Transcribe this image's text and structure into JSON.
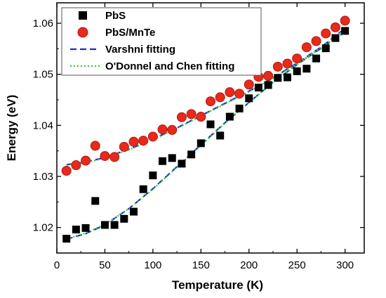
{
  "chart_data": {
    "type": "scatter",
    "xlabel": "Temperature (K)",
    "ylabel": "Energy (eV)",
    "xlim": [
      0,
      320
    ],
    "ylim": [
      1.015,
      1.064
    ],
    "xticks": [
      0,
      50,
      100,
      150,
      200,
      250,
      300
    ],
    "yticks": [
      1.02,
      1.03,
      1.04,
      1.05,
      1.06
    ],
    "legend_position": "top-left",
    "series": [
      {
        "name": "PbS",
        "kind": "marker-square",
        "color": "#000000",
        "x": [
          10,
          20,
          30,
          40,
          50,
          60,
          70,
          80,
          90,
          100,
          110,
          120,
          130,
          140,
          150,
          160,
          170,
          180,
          190,
          200,
          210,
          220,
          230,
          240,
          250,
          260,
          270,
          280,
          290,
          300
        ],
        "y": [
          1.0178,
          1.0196,
          1.0199,
          1.0252,
          1.0205,
          1.0205,
          1.0217,
          1.0231,
          1.0275,
          1.0302,
          1.033,
          1.0336,
          1.0325,
          1.0343,
          1.0365,
          1.0402,
          1.038,
          1.0417,
          1.0433,
          1.0453,
          1.0474,
          1.0479,
          1.0493,
          1.0494,
          1.0506,
          1.0511,
          1.0531,
          1.0551,
          1.0571,
          1.0585
        ]
      },
      {
        "name": "PbS/MnTe",
        "kind": "marker-circle",
        "color": "#e8291c",
        "x": [
          10,
          20,
          30,
          40,
          50,
          60,
          70,
          80,
          90,
          100,
          110,
          120,
          130,
          140,
          150,
          160,
          170,
          180,
          190,
          200,
          210,
          220,
          230,
          240,
          250,
          260,
          270,
          280,
          290,
          300
        ],
        "y": [
          1.0311,
          1.0322,
          1.0331,
          1.036,
          1.034,
          1.0338,
          1.0358,
          1.0368,
          1.037,
          1.0378,
          1.0392,
          1.0391,
          1.0416,
          1.0422,
          1.0417,
          1.0447,
          1.0455,
          1.0465,
          1.0462,
          1.048,
          1.0495,
          1.0497,
          1.0515,
          1.0521,
          1.0531,
          1.0553,
          1.0565,
          1.058,
          1.0592,
          1.0605
        ]
      },
      {
        "name": "Varshni fitting",
        "kind": "line-dashed",
        "color": "#1a2fc9",
        "fits": [
          {
            "x": [
              10,
              30,
              50,
              75,
              100,
              125,
              150,
              175,
              200,
              225,
              250,
              275,
              300
            ],
            "y": [
              1.0177,
              1.0188,
              1.0205,
              1.0237,
              1.0276,
              1.0319,
              1.0362,
              1.0405,
              1.0445,
              1.0484,
              1.0519,
              1.0551,
              1.0583
            ]
          },
          {
            "x": [
              10,
              30,
              50,
              75,
              100,
              125,
              150,
              175,
              200,
              225,
              250,
              275,
              300
            ],
            "y": [
              1.0323,
              1.0328,
              1.0337,
              1.0353,
              1.0373,
              1.0395,
              1.0419,
              1.0443,
              1.0467,
              1.0493,
              1.0522,
              1.0553,
              1.059
            ]
          }
        ]
      },
      {
        "name": "O'Donnel and Chen fitting",
        "kind": "line-dotted",
        "color": "#3cc83c",
        "fits": [
          {
            "x": [
              10,
              30,
              50,
              75,
              100,
              125,
              150,
              175,
              200,
              225,
              250,
              275,
              300
            ],
            "y": [
              1.0178,
              1.0189,
              1.0206,
              1.0237,
              1.0275,
              1.0318,
              1.0361,
              1.0404,
              1.0445,
              1.0484,
              1.0519,
              1.0552,
              1.0584
            ]
          },
          {
            "x": [
              10,
              30,
              50,
              75,
              100,
              125,
              150,
              175,
              200,
              225,
              250,
              275,
              300
            ],
            "y": [
              1.0322,
              1.0327,
              1.0336,
              1.0352,
              1.0372,
              1.0394,
              1.0418,
              1.0442,
              1.0466,
              1.0492,
              1.0521,
              1.0552,
              1.0588
            ]
          }
        ]
      }
    ]
  }
}
